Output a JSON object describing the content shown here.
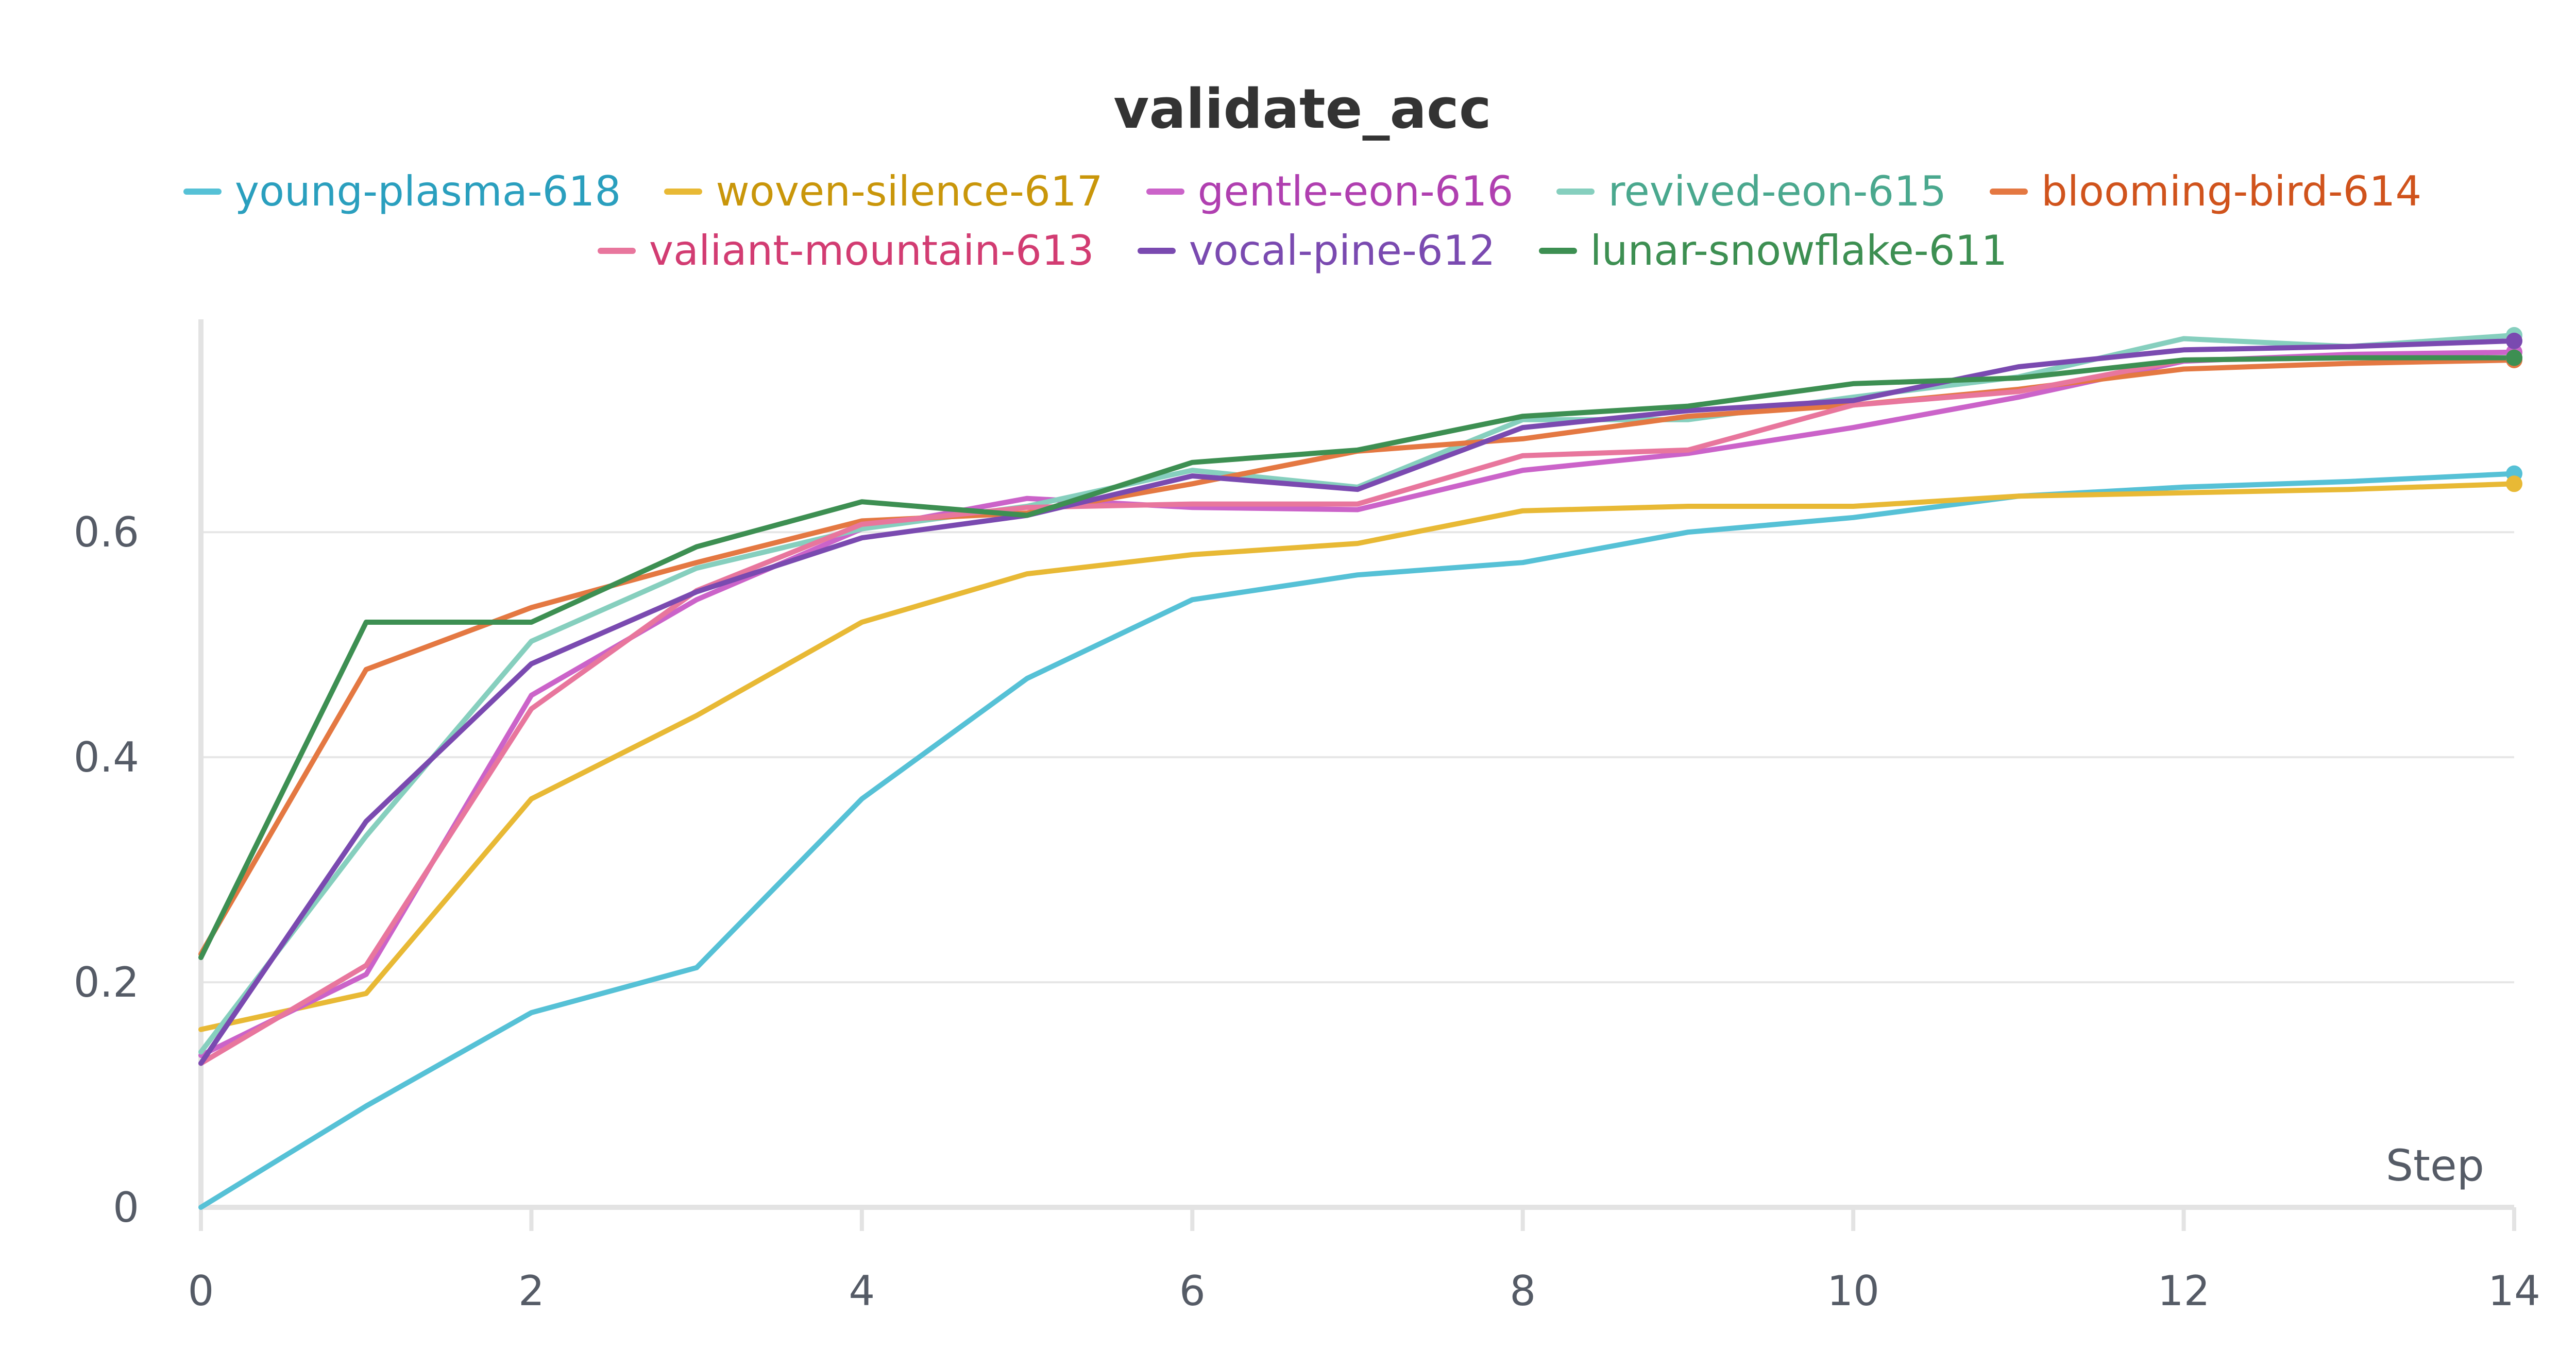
{
  "chart_data": {
    "type": "line",
    "title": "validate_acc",
    "xlabel": "Step",
    "ylabel": "",
    "x": [
      0,
      1,
      2,
      3,
      4,
      5,
      6,
      7,
      8,
      9,
      10,
      11,
      12,
      13,
      14
    ],
    "xlim": [
      0,
      14
    ],
    "ylim": [
      0,
      0.78
    ],
    "xticks": [
      "0",
      "2",
      "4",
      "6",
      "8",
      "10",
      "12",
      "14"
    ],
    "yticks": [
      "0",
      "0.2",
      "0.4",
      "0.6"
    ],
    "grid": true,
    "legend_position": "top",
    "series": [
      {
        "name": "young-plasma-618",
        "color": "#56c1d6",
        "label_color": "#2a9fbe",
        "values": [
          0.0,
          0.09,
          0.173,
          0.213,
          0.363,
          0.47,
          0.54,
          0.562,
          0.573,
          0.6,
          0.613,
          0.632,
          0.64,
          0.645,
          0.652
        ]
      },
      {
        "name": "woven-silence-617",
        "color": "#e8b935",
        "label_color": "#c9960a",
        "values": [
          0.158,
          0.19,
          0.363,
          0.437,
          0.52,
          0.563,
          0.58,
          0.59,
          0.619,
          0.623,
          0.623,
          0.632,
          0.635,
          0.638,
          0.643
        ]
      },
      {
        "name": "gentle-eon-616",
        "color": "#cb63c9",
        "label_color": "#b03fb0",
        "values": [
          0.135,
          0.207,
          0.455,
          0.54,
          0.603,
          0.63,
          0.622,
          0.62,
          0.655,
          0.67,
          0.693,
          0.72,
          0.752,
          0.758,
          0.76
        ]
      },
      {
        "name": "revived-eon-615",
        "color": "#86cfbe",
        "label_color": "#4aa88e",
        "values": [
          0.138,
          0.33,
          0.503,
          0.568,
          0.603,
          0.623,
          0.655,
          0.64,
          0.7,
          0.7,
          0.72,
          0.738,
          0.772,
          0.765,
          0.775
        ]
      },
      {
        "name": "blooming-bird-614",
        "color": "#e47842",
        "label_color": "#d0531c",
        "values": [
          0.225,
          0.478,
          0.533,
          0.573,
          0.61,
          0.617,
          0.643,
          0.672,
          0.683,
          0.703,
          0.713,
          0.727,
          0.745,
          0.75,
          0.753
        ]
      },
      {
        "name": "valiant-mountain-613",
        "color": "#e8769d",
        "label_color": "#d23c72",
        "values": [
          0.128,
          0.215,
          0.443,
          0.548,
          0.607,
          0.622,
          0.625,
          0.625,
          0.668,
          0.673,
          0.713,
          0.725,
          0.753,
          0.755,
          0.755
        ]
      },
      {
        "name": "vocal-pine-612",
        "color": "#7a4ab0",
        "label_color": "#7a4ab0",
        "values": [
          0.128,
          0.343,
          0.483,
          0.547,
          0.595,
          0.615,
          0.65,
          0.638,
          0.693,
          0.708,
          0.717,
          0.747,
          0.762,
          0.765,
          0.77
        ]
      },
      {
        "name": "lunar-snowflake-611",
        "color": "#3d8f52",
        "label_color": "#3d8f52",
        "values": [
          0.222,
          0.52,
          0.52,
          0.587,
          0.627,
          0.615,
          0.662,
          0.673,
          0.703,
          0.712,
          0.732,
          0.737,
          0.753,
          0.755,
          0.755
        ]
      }
    ]
  }
}
